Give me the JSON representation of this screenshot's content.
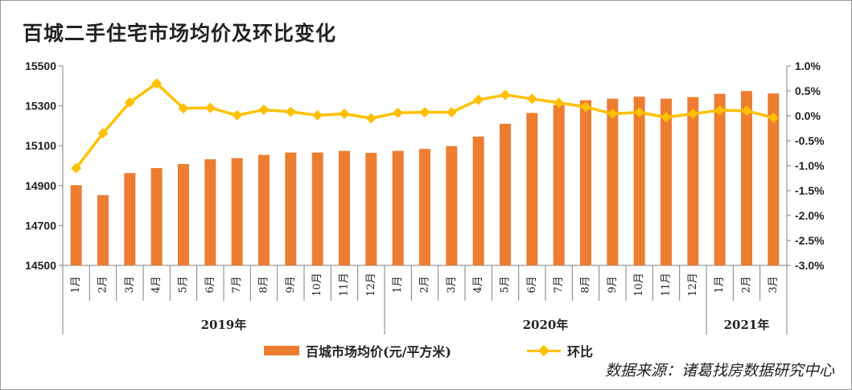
{
  "title": "百城二手住宅市场均价及环比变化",
  "source": "数据来源：诸葛找房数据研究中心",
  "colors": {
    "bar": "#ED7D31",
    "line": "#FFC000",
    "axis": "#7f7f7f",
    "text": "#222222"
  },
  "chart_data": {
    "type": "bar",
    "title": "百城二手住宅市场均价及环比变化",
    "months": [
      "1月",
      "2月",
      "3月",
      "4月",
      "5月",
      "6月",
      "7月",
      "8月",
      "9月",
      "10月",
      "11月",
      "12月",
      "1月",
      "2月",
      "3月",
      "4月",
      "5月",
      "6月",
      "7月",
      "8月",
      "9月",
      "10月",
      "11月",
      "12月",
      "1月",
      "2月",
      "3月"
    ],
    "years": [
      {
        "label": "2019年",
        "count": 12
      },
      {
        "label": "2020年",
        "count": 12
      },
      {
        "label": "2021年",
        "count": 3
      }
    ],
    "series": [
      {
        "name": "百城市场均价(元/平方米)",
        "type": "bar",
        "axis": "left",
        "values": [
          14902,
          14852,
          14963,
          14988,
          15008,
          15032,
          15038,
          15054,
          15066,
          15066,
          15074,
          15064,
          15074,
          15084,
          15098,
          15146,
          15210,
          15264,
          15304,
          15328,
          15336,
          15346,
          15336,
          15344,
          15360,
          15374,
          15362
        ]
      },
      {
        "name": "环比",
        "type": "line",
        "axis": "right",
        "values": [
          -1.05,
          -0.35,
          0.27,
          0.65,
          0.15,
          0.16,
          0.01,
          0.12,
          0.08,
          0.01,
          0.04,
          -0.05,
          0.06,
          0.07,
          0.07,
          0.32,
          0.42,
          0.34,
          0.26,
          0.18,
          0.04,
          0.07,
          -0.03,
          0.04,
          0.11,
          0.1,
          -0.04
        ]
      }
    ],
    "y_left": {
      "min": 14500,
      "max": 15500,
      "ticks": [
        "14500",
        "14700",
        "14900",
        "15100",
        "15300",
        "15500"
      ]
    },
    "y_right": {
      "min": -3.0,
      "max": 1.0,
      "ticks": [
        "-3.0%",
        "-2.5%",
        "-2.0%",
        "-1.5%",
        "-1.0%",
        "-0.5%",
        "0.0%",
        "0.5%",
        "1.0%"
      ]
    },
    "legend": {
      "position": "bottom",
      "bar_label": "百城市场均价(元/平方米)",
      "line_label": "环比"
    },
    "grid": false
  }
}
